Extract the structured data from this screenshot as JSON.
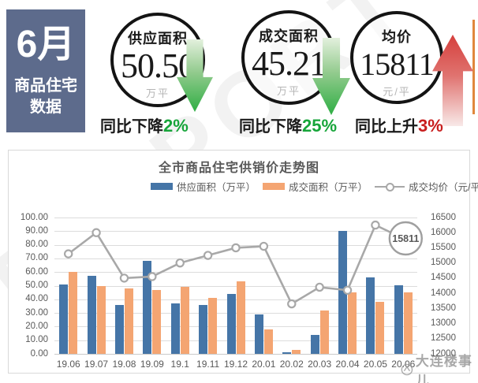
{
  "header": {
    "month": "6月",
    "subtitle1": "商品住宅",
    "subtitle2": "数据",
    "box_color": "#5d6b8c",
    "stats": [
      {
        "label": "供应面积",
        "value": "50.50",
        "unit": "万平",
        "trend_text": "同比下降",
        "trend_value": "2%",
        "direction": "down",
        "trend_color": "#17a53a"
      },
      {
        "label": "成交面积",
        "value": "45.21",
        "unit": "万平",
        "trend_text": "同比下降",
        "trend_value": "25%",
        "direction": "down",
        "trend_color": "#17a53a"
      },
      {
        "label": "均价",
        "value": "15811",
        "unit": "元/平",
        "trend_text": "同比上升",
        "trend_value": "3%",
        "direction": "up",
        "trend_color": "#c81e1e"
      }
    ]
  },
  "chart": {
    "title": "全市商品住宅供销价走势图",
    "legend": [
      {
        "label": "供应面积（万平）",
        "type": "bar",
        "color": "#4575a7"
      },
      {
        "label": "成交面积（万平）",
        "type": "bar",
        "color": "#f4a572"
      },
      {
        "label": "成交均价（元/平）",
        "type": "line",
        "color": "#a8a8a8"
      }
    ]
  },
  "chart_data": {
    "type": "bar+line combo",
    "title": "全市商品住宅供销价走势图",
    "categories": [
      "19.06",
      "19.07",
      "19.08",
      "19.09",
      "19.1",
      "19.11",
      "19.12",
      "20.01",
      "20.02",
      "20.03",
      "20.04",
      "20.05",
      "20.06"
    ],
    "series": [
      {
        "name": "供应面积（万平）",
        "type": "bar",
        "axis": "left",
        "color": "#4575a7",
        "values": [
          51,
          57,
          36,
          68,
          37,
          36,
          44,
          29,
          1,
          14,
          90,
          56,
          50.5
        ]
      },
      {
        "name": "成交面积（万平）",
        "type": "bar",
        "axis": "left",
        "color": "#f4a572",
        "values": [
          60,
          50,
          48,
          47,
          49,
          41,
          53,
          18,
          3,
          32,
          45,
          38,
          45.21
        ]
      },
      {
        "name": "成交均价（元/平）",
        "type": "line",
        "axis": "right",
        "color": "#a8a8a8",
        "values": [
          15300,
          16000,
          14500,
          14550,
          15000,
          15250,
          15500,
          15550,
          13650,
          14200,
          14100,
          16250,
          15811
        ]
      }
    ],
    "left_axis": {
      "min": 0,
      "max": 100,
      "step": 10,
      "labels": [
        "100.00",
        "90.00",
        "80.00",
        "70.00",
        "60.00",
        "50.00",
        "40.00",
        "30.00",
        "20.00",
        "10.00",
        "0.00"
      ]
    },
    "right_axis": {
      "min": 12000,
      "max": 16500,
      "step": 500,
      "labels": [
        "16500",
        "16000",
        "15500",
        "15000",
        "14500",
        "14000",
        "13500",
        "13000",
        "12500",
        "12000"
      ]
    },
    "annotation": {
      "text": "15811",
      "category": "20.06",
      "series": "成交均价（元/平）"
    },
    "grid": true,
    "legend_position": "top"
  },
  "watermarks": {
    "brand": "TOSPORT",
    "footer": "大连楼事儿"
  }
}
